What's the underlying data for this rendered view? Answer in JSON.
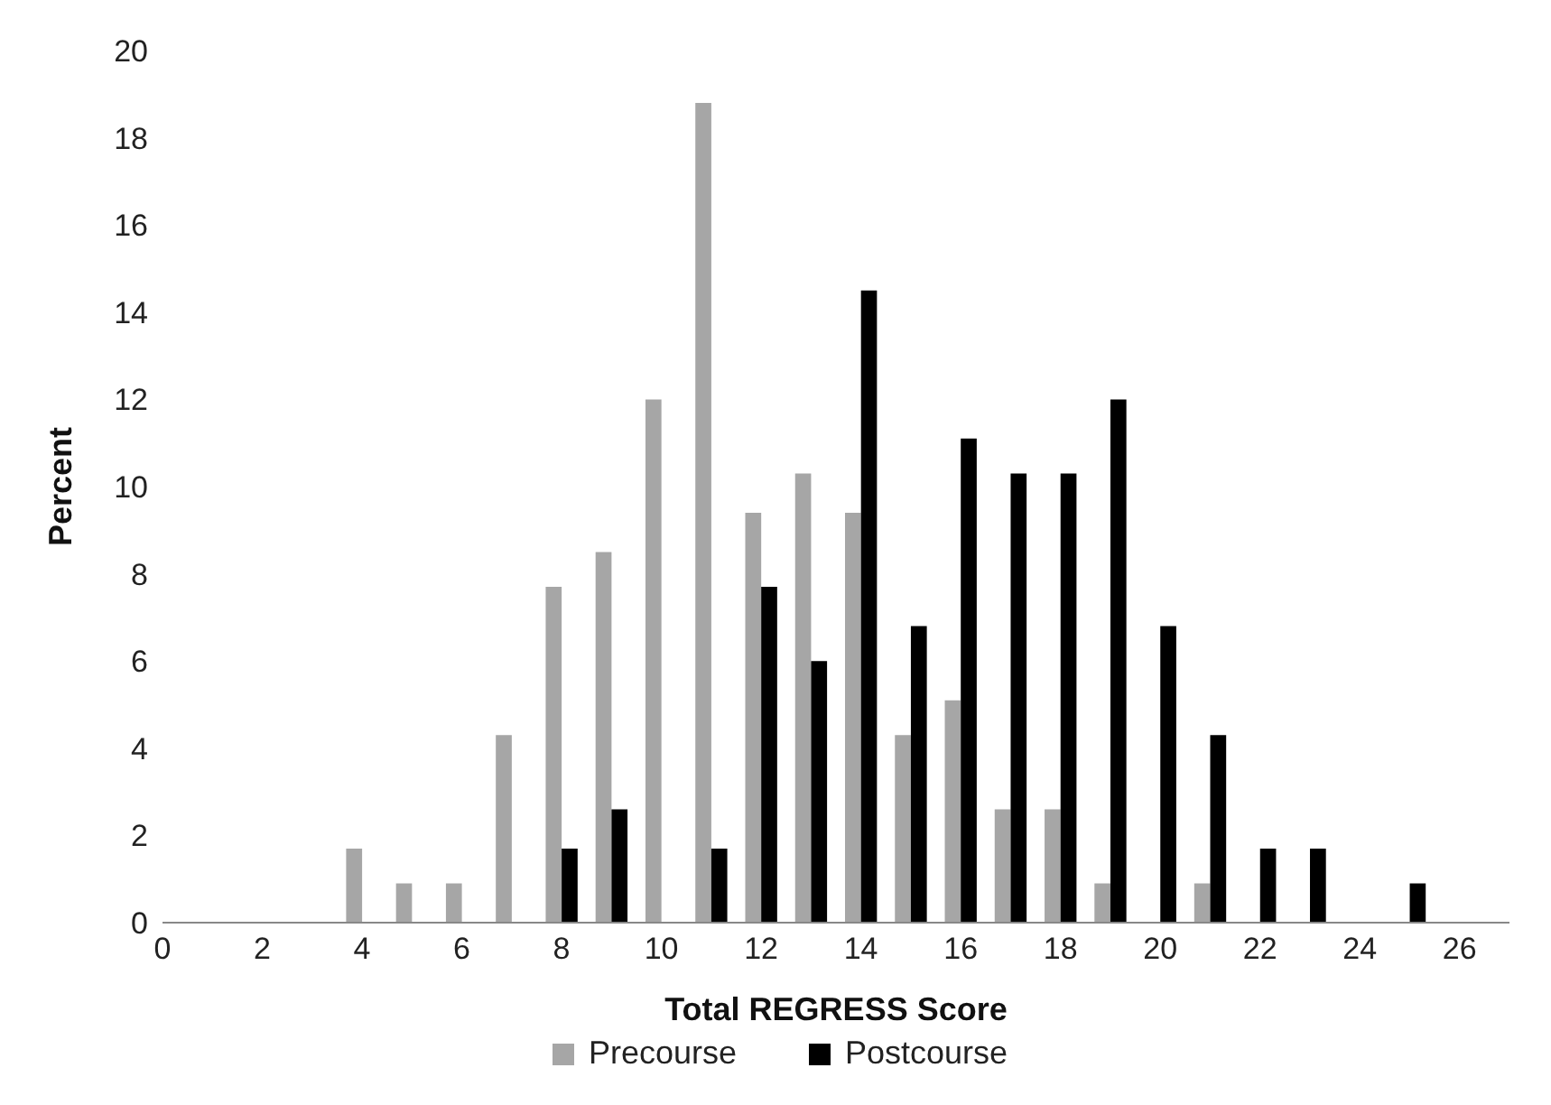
{
  "chart_data": {
    "type": "bar",
    "xlabel": "Total REGRESS Score",
    "ylabel": "Percent",
    "x": [
      0,
      1,
      2,
      3,
      4,
      5,
      6,
      7,
      8,
      9,
      10,
      11,
      12,
      13,
      14,
      15,
      16,
      17,
      18,
      19,
      20,
      21,
      22,
      23,
      24,
      25,
      26
    ],
    "xlim": [
      0,
      27
    ],
    "xticks": [
      0,
      2,
      4,
      6,
      8,
      10,
      12,
      14,
      16,
      18,
      20,
      22,
      24,
      26
    ],
    "series": [
      {
        "name": "Precourse",
        "color": "#a6a6a6",
        "values": [
          0,
          0,
          0,
          0,
          1.7,
          0.9,
          0.9,
          4.3,
          7.7,
          8.5,
          12,
          18.8,
          9.4,
          10.3,
          9.4,
          4.3,
          5.1,
          2.6,
          2.6,
          0.9,
          0,
          0.9,
          0,
          0,
          0,
          0,
          0
        ]
      },
      {
        "name": "Postcourse",
        "color": "#000000",
        "values": [
          0,
          0,
          0,
          0,
          0,
          0,
          0,
          0,
          1.7,
          2.6,
          0,
          1.7,
          7.7,
          6,
          14.5,
          6.8,
          11.1,
          10.3,
          10.3,
          12,
          6.8,
          4.3,
          1.7,
          1.7,
          0,
          0.9,
          0
        ]
      }
    ],
    "ylim": [
      0,
      20
    ],
    "yticks": [
      0,
      2,
      4,
      6,
      8,
      10,
      12,
      14,
      16,
      18,
      20
    ],
    "grid": false,
    "legend": "bottom"
  }
}
